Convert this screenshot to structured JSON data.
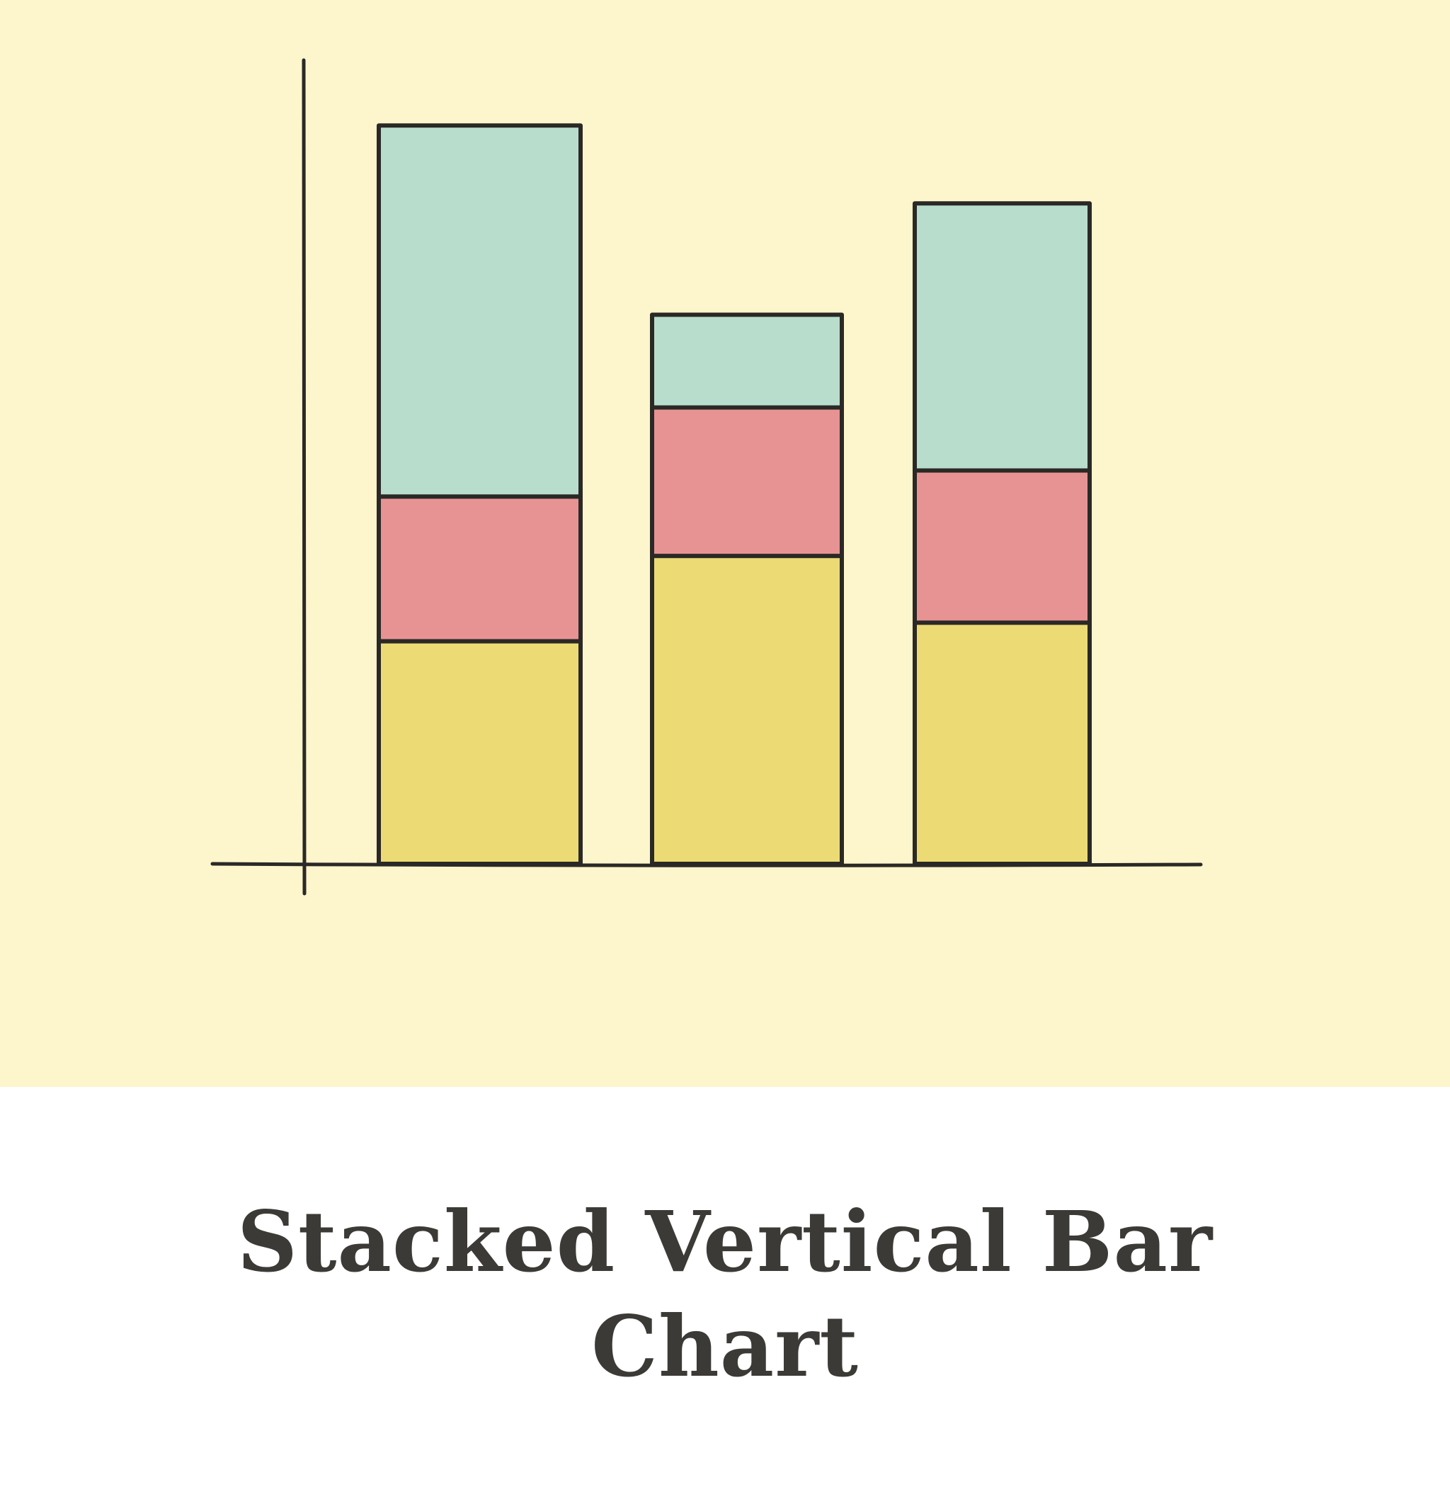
{
  "caption": {
    "line1": "Stacked Vertical Bar",
    "line2": "Chart"
  },
  "colors": {
    "panel_background": "#fdf5cc",
    "segment_bottom": "#ecdb74",
    "segment_middle": "#e89393",
    "segment_top": "#b9ddcd",
    "ink": "#2a2926"
  },
  "chart_data": {
    "type": "bar",
    "stacked": true,
    "orientation": "vertical",
    "title": "Stacked Vertical Bar Chart",
    "xlabel": "",
    "ylabel": "",
    "tick_labels_shown": false,
    "grid": false,
    "legend": "none",
    "categories": [
      "",
      "",
      ""
    ],
    "ylim": [
      0,
      100
    ],
    "series": [
      {
        "color": "#ecdb74",
        "values": [
          30,
          41.5,
          32.5
        ]
      },
      {
        "color": "#e89393",
        "values": [
          19.5,
          20,
          20.5
        ]
      },
      {
        "color": "#b9ddcd",
        "values": [
          50,
          12.5,
          36
        ]
      }
    ]
  }
}
